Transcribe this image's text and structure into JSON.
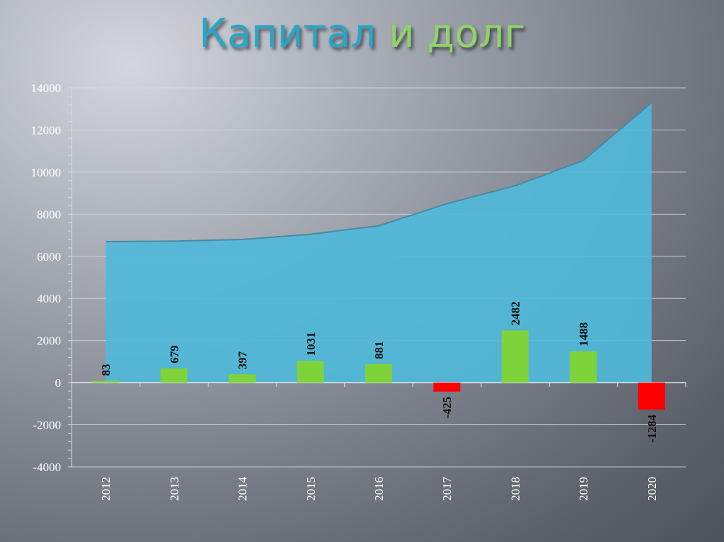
{
  "title": {
    "part1": "Капитал",
    "part2": "и долг"
  },
  "colors": {
    "area": "#4fb8d9",
    "area_line": "#4a8aa3",
    "bar_positive": "#7ed33b",
    "bar_negative": "#ff0000",
    "grid": "#d6d9de",
    "title_part1": "#2aa5c8",
    "title_part2": "#8fd36a"
  },
  "chart_data": {
    "type": "bar",
    "categories": [
      "2012",
      "2013",
      "2014",
      "2015",
      "2016",
      "2017",
      "2018",
      "2019",
      "2020"
    ],
    "series": [
      {
        "type": "area",
        "values": [
          6700,
          6720,
          6800,
          7050,
          7450,
          8500,
          9350,
          10550,
          13300
        ]
      },
      {
        "type": "bar",
        "values": [
          83,
          679,
          397,
          1031,
          881,
          -425,
          2482,
          1488,
          -1284
        ]
      }
    ],
    "yticks": [
      14000,
      12000,
      10000,
      8000,
      6000,
      4000,
      2000,
      0,
      -2000,
      -4000
    ],
    "ylim": [
      -4000,
      14000
    ],
    "grid": true,
    "data_labels": true
  }
}
